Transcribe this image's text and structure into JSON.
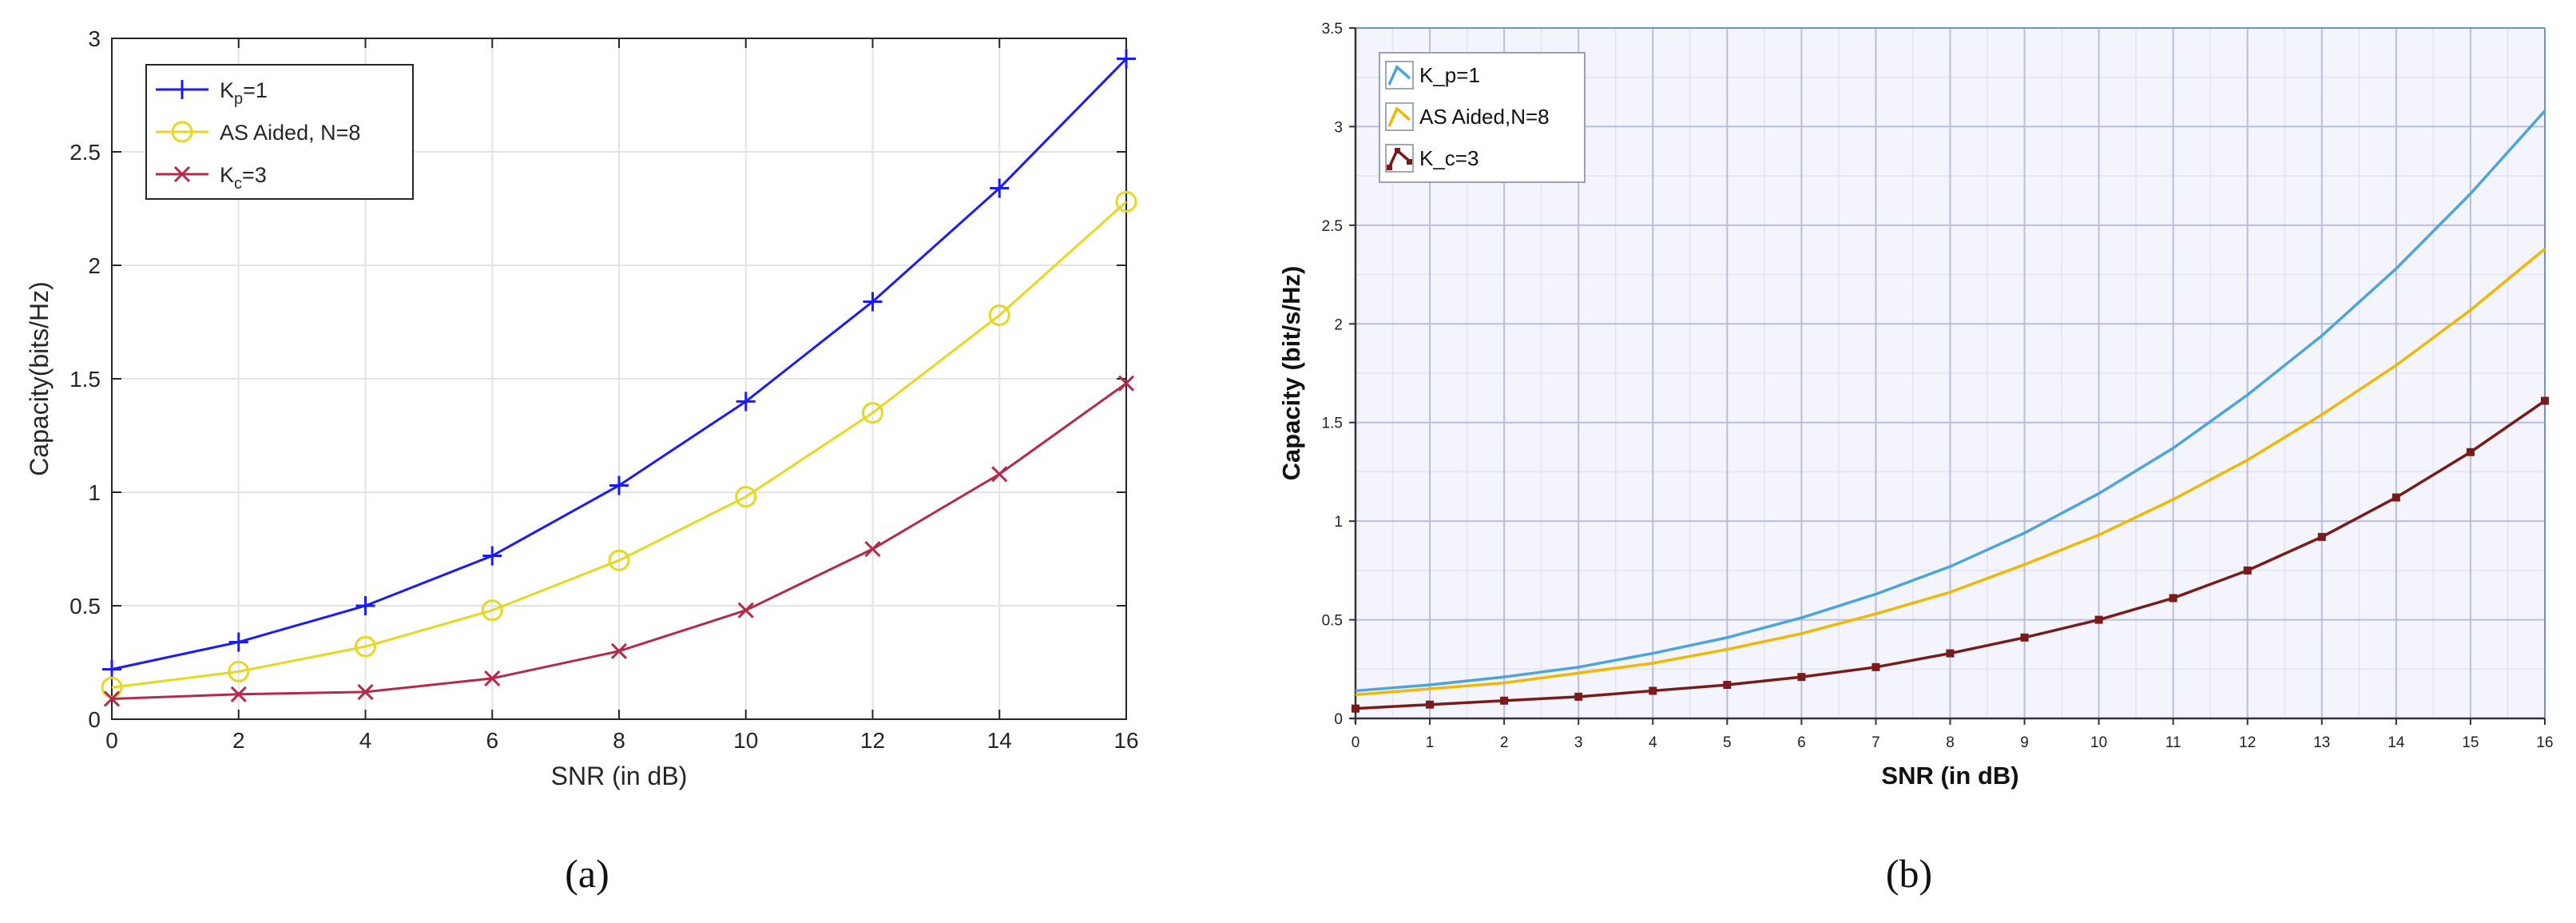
{
  "panels": [
    {
      "caption": "(a)",
      "chart_data": {
        "type": "line",
        "x": [
          0,
          2,
          4,
          6,
          8,
          10,
          12,
          14,
          16
        ],
        "xlabel": "SNR (in dB)",
        "ylabel": "Capacity(bits/Hz)",
        "xlim": [
          0,
          16
        ],
        "ylim": [
          0,
          3
        ],
        "xticks": [
          "0",
          "2",
          "4",
          "6",
          "8",
          "10",
          "12",
          "14",
          "16"
        ],
        "yticks": [
          "0",
          "0.5",
          "1",
          "1.5",
          "2",
          "2.5",
          "3"
        ],
        "grid": true,
        "legend_position": "top-left",
        "series": [
          {
            "legend": {
              "base": "K",
              "sub": "p",
              "rest": "=1"
            },
            "color": "#1a1aff",
            "marker": "plus",
            "values": [
              0.22,
              0.34,
              0.5,
              0.72,
              1.03,
              1.4,
              1.84,
              2.34,
              2.91
            ]
          },
          {
            "legend": {
              "base": "AS Aided, N=8",
              "sub": "",
              "rest": ""
            },
            "color": "#e6d81e",
            "marker": "circle",
            "values": [
              0.14,
              0.21,
              0.32,
              0.48,
              0.7,
              0.98,
              1.35,
              1.78,
              2.28
            ]
          },
          {
            "legend": {
              "base": "K",
              "sub": "c",
              "rest": "=3"
            },
            "color": "#b52a4a",
            "marker": "x",
            "values": [
              0.09,
              0.11,
              0.12,
              0.18,
              0.3,
              0.48,
              0.75,
              1.08,
              1.48
            ]
          }
        ]
      }
    },
    {
      "caption": "(b)",
      "chart_data": {
        "type": "line",
        "x": [
          0,
          1,
          2,
          3,
          4,
          5,
          6,
          7,
          8,
          9,
          10,
          11,
          12,
          13,
          14,
          15,
          16
        ],
        "xlabel": "SNR (in dB)",
        "ylabel": "Capacity (bit/s/Hz)",
        "xlim": [
          0,
          16
        ],
        "ylim": [
          0,
          3.5
        ],
        "xticks": [
          "0",
          "1",
          "2",
          "3",
          "4",
          "5",
          "6",
          "7",
          "8",
          "9",
          "10",
          "11",
          "12",
          "13",
          "14",
          "15",
          "16"
        ],
        "yticks": [
          "0",
          "0.5",
          "1",
          "1.5",
          "2",
          "2.5",
          "3",
          "3.5"
        ],
        "grid": true,
        "legend_position": "top-left",
        "series": [
          {
            "name": "K_p=1",
            "color": "#4da3dc",
            "marker": "none",
            "values": [
              0.14,
              0.17,
              0.21,
              0.26,
              0.33,
              0.41,
              0.51,
              0.63,
              0.77,
              0.94,
              1.14,
              1.37,
              1.64,
              1.94,
              2.28,
              2.66,
              3.08
            ]
          },
          {
            "name": "AS Aided,N=8",
            "color": "#f2b705",
            "marker": "none",
            "values": [
              0.12,
              0.15,
              0.18,
              0.23,
              0.28,
              0.35,
              0.43,
              0.53,
              0.64,
              0.78,
              0.93,
              1.11,
              1.31,
              1.54,
              1.79,
              2.07,
              2.38
            ]
          },
          {
            "name": "K_c=3",
            "color": "#7a1b1b",
            "marker": "square",
            "values": [
              0.05,
              0.07,
              0.09,
              0.11,
              0.14,
              0.17,
              0.21,
              0.26,
              0.33,
              0.41,
              0.5,
              0.61,
              0.75,
              0.92,
              1.12,
              1.35,
              1.61
            ]
          }
        ]
      }
    }
  ]
}
